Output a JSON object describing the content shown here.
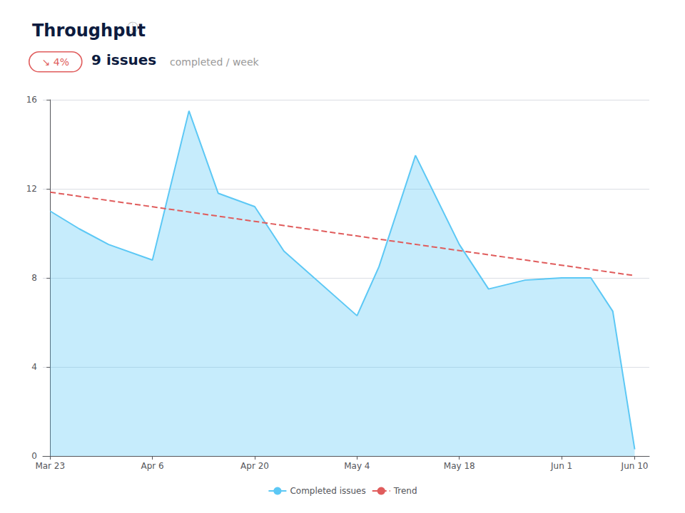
{
  "chart_data": {
    "type": "area",
    "title": "Throughput",
    "annotations": [
      "ⓘ",
      "↘ 4%",
      "9 issues",
      "completed / week"
    ],
    "series": [
      {
        "name": "Completed issues",
        "type": "area",
        "color": "#5CC8F5",
        "x": [
          0,
          4,
          8,
          14,
          19,
          23,
          28,
          32,
          42,
          45,
          50,
          56,
          60,
          65,
          70,
          74,
          77,
          80
        ],
        "values": [
          11.0,
          10.2,
          9.5,
          8.8,
          15.5,
          11.8,
          11.2,
          9.2,
          6.3,
          8.5,
          13.5,
          9.5,
          7.5,
          7.9,
          8.0,
          8.0,
          6.5,
          0.3
        ]
      },
      {
        "name": "Trend",
        "type": "line",
        "line_style": "dashed",
        "color": "#E05C5C",
        "x": [
          0,
          80
        ],
        "values": [
          11.85,
          8.1
        ]
      }
    ],
    "xlim": [
      -1,
      82
    ],
    "xticks": [
      {
        "value": 0,
        "label": "Mar 23"
      },
      {
        "value": 14,
        "label": "Apr 6"
      },
      {
        "value": 28,
        "label": "Apr 20"
      },
      {
        "value": 42,
        "label": "May 4"
      },
      {
        "value": 56,
        "label": "May 18"
      },
      {
        "value": 70,
        "label": "Jun 1"
      },
      {
        "value": 80,
        "label": "Jun 10"
      }
    ],
    "ylim": [
      0,
      16
    ],
    "yticks": [
      0,
      4,
      8,
      12,
      16
    ],
    "grid": true,
    "legend": "bottom"
  }
}
